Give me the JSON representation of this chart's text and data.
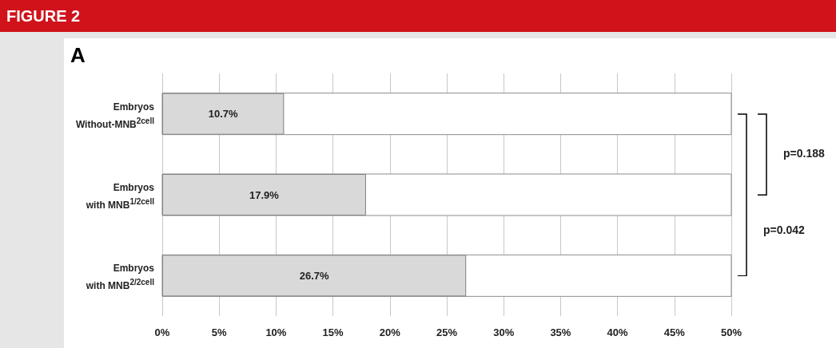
{
  "chart_data": {
    "type": "bar",
    "orientation": "horizontal",
    "title": "FIGURE 2",
    "annotations": [
      "A",
      "p=0.188",
      "p=0.042"
    ],
    "categories": [
      "Embryos Without-MNB$^{2cell}$",
      "Embryos with MNB$^{1/2cell}$",
      "Embryos with MNB$^{2/2cell}$"
    ],
    "values": [
      10.7,
      17.9,
      26.7
    ],
    "color": "#d9d9d9",
    "value_labels": [
      "10.7%",
      "17.9%",
      "26.7%"
    ],
    "xlim": [
      0,
      50
    ],
    "xticks": [
      {
        "value": 0,
        "label": "0%"
      },
      {
        "value": 5,
        "label": "5%"
      },
      {
        "value": 10,
        "label": "10%"
      },
      {
        "value": 15,
        "label": "15%"
      },
      {
        "value": 20,
        "label": "20%"
      },
      {
        "value": 25,
        "label": "25%"
      },
      {
        "value": 30,
        "label": "30%"
      },
      {
        "value": 35,
        "label": "35%"
      },
      {
        "value": 40,
        "label": "40%"
      },
      {
        "value": 45,
        "label": "45%"
      },
      {
        "value": 50,
        "label": "50%"
      }
    ],
    "grid": "x"
  }
}
